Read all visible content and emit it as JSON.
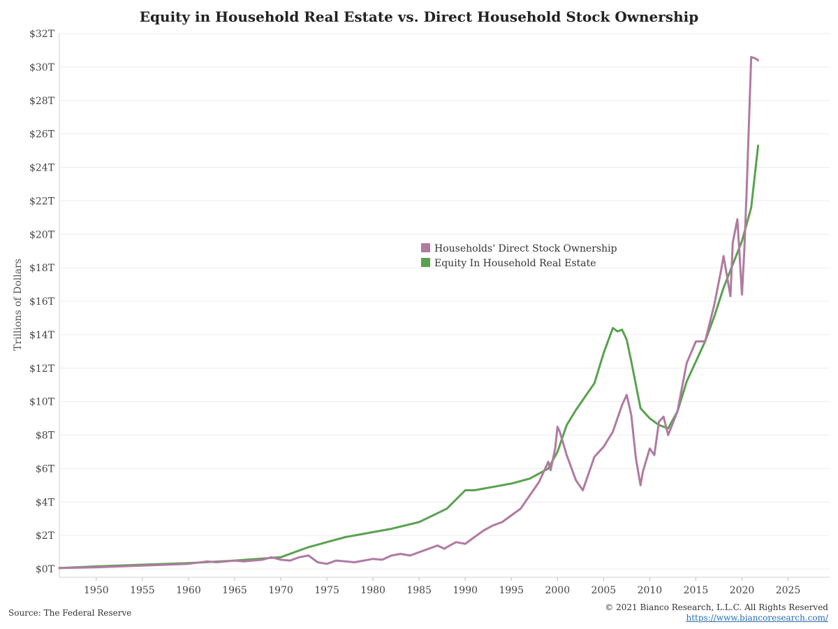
{
  "chart_data": {
    "type": "line",
    "title": "Equity in Household Real Estate vs. Direct Household Stock Ownership",
    "ylabel": "Trillions of Dollars",
    "xlabel": "",
    "xlim": [
      1946,
      2029.5
    ],
    "ylim": [
      -0.5,
      32
    ],
    "grid": true,
    "legend_position": "center",
    "x_ticks": [
      1950,
      1955,
      1960,
      1965,
      1970,
      1975,
      1980,
      1985,
      1990,
      1995,
      2000,
      2005,
      2010,
      2015,
      2020,
      2025
    ],
    "x_tick_labels": [
      "1950",
      "1955",
      "1960",
      "1965",
      "1970",
      "1975",
      "1980",
      "1985",
      "1990",
      "1995",
      "2000",
      "2005",
      "2010",
      "2015",
      "2020",
      "2025"
    ],
    "y_ticks": [
      0,
      2,
      4,
      6,
      8,
      10,
      12,
      14,
      16,
      18,
      20,
      22,
      24,
      26,
      28,
      30,
      32
    ],
    "y_tick_labels": [
      "$0T",
      "$2T",
      "$4T",
      "$6T",
      "$8T",
      "$10T",
      "$12T",
      "$14T",
      "$16T",
      "$18T",
      "$20T",
      "$22T",
      "$24T",
      "$26T",
      "$28T",
      "$30T",
      "$32T"
    ],
    "series": [
      {
        "name": "Households' Direct Stock Ownership",
        "color": "#b07aa1",
        "x": [
          1946,
          1950,
          1955,
          1960,
          1962,
          1963,
          1965,
          1966,
          1968,
          1969,
          1970,
          1971,
          1972,
          1973,
          1974,
          1975,
          1976,
          1977,
          1978,
          1979,
          1980,
          1981,
          1982,
          1983,
          1984,
          1985,
          1986,
          1987,
          1987.75,
          1988,
          1989,
          1990,
          1990.75,
          1991,
          1992,
          1993,
          1994,
          1995,
          1996,
          1997,
          1998,
          1999,
          1999.25,
          1999.75,
          2000,
          2000.25,
          2001,
          2002,
          2002.75,
          2003,
          2004,
          2005,
          2006,
          2007,
          2007.5,
          2008,
          2008.5,
          2009,
          2009.25,
          2010,
          2010.5,
          2011,
          2011.5,
          2012,
          2013,
          2014,
          2015,
          2016,
          2017,
          2017.75,
          2018,
          2018.75,
          2019,
          2019.5,
          2020,
          2020.25,
          2020.5,
          2021,
          2021.5,
          2021.75
        ],
        "values": [
          0.05,
          0.1,
          0.2,
          0.3,
          0.45,
          0.4,
          0.5,
          0.45,
          0.55,
          0.7,
          0.55,
          0.5,
          0.7,
          0.8,
          0.4,
          0.3,
          0.5,
          0.45,
          0.4,
          0.5,
          0.6,
          0.55,
          0.8,
          0.9,
          0.8,
          1.0,
          1.2,
          1.4,
          1.2,
          1.3,
          1.6,
          1.5,
          1.8,
          1.9,
          2.3,
          2.6,
          2.8,
          3.2,
          3.6,
          4.4,
          5.2,
          6.4,
          5.9,
          7.2,
          8.5,
          8.2,
          6.8,
          5.3,
          4.7,
          5.1,
          6.7,
          7.3,
          8.2,
          9.8,
          10.4,
          9.2,
          6.6,
          5.0,
          5.8,
          7.2,
          6.8,
          8.8,
          9.1,
          8.0,
          9.4,
          12.3,
          13.6,
          13.6,
          15.8,
          17.9,
          18.7,
          16.3,
          19.5,
          20.9,
          16.4,
          19.0,
          22.5,
          30.6,
          30.5,
          30.4
        ]
      },
      {
        "name": "Equity In Household Real Estate",
        "color": "#59a14f",
        "x": [
          1946,
          1950,
          1955,
          1960,
          1965,
          1970,
          1973,
          1975,
          1977,
          1980,
          1982,
          1985,
          1988,
          1990,
          1991,
          1993,
          1995,
          1997,
          1999,
          2000,
          2001,
          2002,
          2003,
          2004,
          2005,
          2006,
          2006.5,
          2007,
          2007.5,
          2008,
          2009,
          2010,
          2011,
          2012,
          2013,
          2014,
          2015,
          2016,
          2017,
          2018,
          2019,
          2020,
          2021,
          2021.75
        ],
        "values": [
          0.05,
          0.15,
          0.25,
          0.35,
          0.5,
          0.7,
          1.3,
          1.6,
          1.9,
          2.2,
          2.4,
          2.8,
          3.6,
          4.7,
          4.7,
          4.9,
          5.1,
          5.4,
          6.0,
          7.0,
          8.6,
          9.5,
          10.3,
          11.1,
          12.9,
          14.4,
          14.2,
          14.3,
          13.7,
          12.4,
          9.6,
          9.0,
          8.6,
          8.4,
          9.4,
          11.2,
          12.4,
          13.6,
          15.1,
          16.8,
          18.2,
          19.6,
          21.6,
          25.3
        ]
      }
    ]
  },
  "footer": {
    "source": "Source: The Federal Reserve",
    "copyright": "© 2021 Bianco Research, L.L.C. All Rights Reserved",
    "link": "https://www.biancoresearch.com/"
  }
}
